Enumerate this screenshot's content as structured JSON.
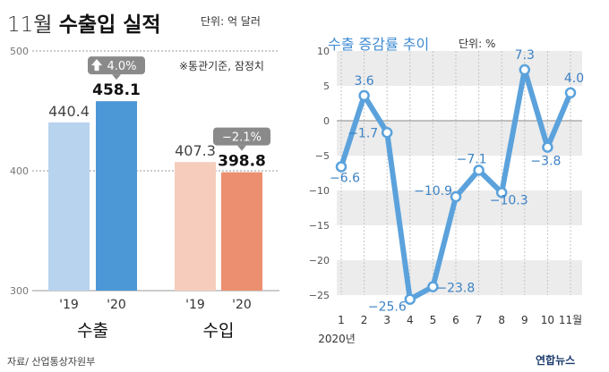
{
  "left_title": {
    "light": "11월",
    "bold": "수출입 실적"
  },
  "left_unit": "단위: 억 달러",
  "note": "※통관기준, 잠정치",
  "right_title": "수출 증감률 추이",
  "right_unit": "단위: %",
  "source": "자료/ 산업통상자원부",
  "brand": "연합뉴스",
  "colors": {
    "export_19": "#b7d3ee",
    "export_20": "#4c97d6",
    "import_19": "#f6cdbd",
    "import_20": "#ec8f70",
    "line": "#5ba2dc",
    "label": "#3d82c4",
    "band": "#ececec",
    "badge": "#8a8a8a"
  },
  "chart_data": [
    {
      "type": "bar",
      "title": "11월 수출입 실적",
      "ylim": [
        300,
        500
      ],
      "yticks": [
        300,
        400,
        500
      ],
      "groups": [
        {
          "name": "수출",
          "categories": [
            "'19",
            "'20"
          ],
          "values": [
            440.4,
            458.1
          ],
          "change": "4.0%"
        },
        {
          "name": "수입",
          "categories": [
            "'19",
            "'20"
          ],
          "values": [
            407.3,
            398.8
          ],
          "change": "−2.1%"
        }
      ]
    },
    {
      "type": "line",
      "title": "수출 증감률 추이",
      "x": [
        "1",
        "2",
        "3",
        "4",
        "5",
        "6",
        "7",
        "8",
        "9",
        "10",
        "11월"
      ],
      "xlabel": "2020년",
      "ylim": [
        -25,
        10
      ],
      "yticks": [
        10,
        5,
        0,
        -5,
        -10,
        -15,
        -20,
        -25
      ],
      "ytick_labels": [
        "10",
        "5",
        "0",
        "−5",
        "−10",
        "−15",
        "−20",
        "−25"
      ],
      "values": [
        -6.6,
        3.6,
        -1.7,
        -25.6,
        -23.8,
        -10.9,
        -7.1,
        -10.3,
        7.3,
        -3.8,
        4.0
      ],
      "value_labels": [
        "−6.6",
        "3.6",
        "−1.7",
        "−25.6",
        "−23.8",
        "−10.9",
        "−7.1",
        "−10.3",
        "7.3",
        "−3.8",
        "4.0"
      ]
    }
  ]
}
